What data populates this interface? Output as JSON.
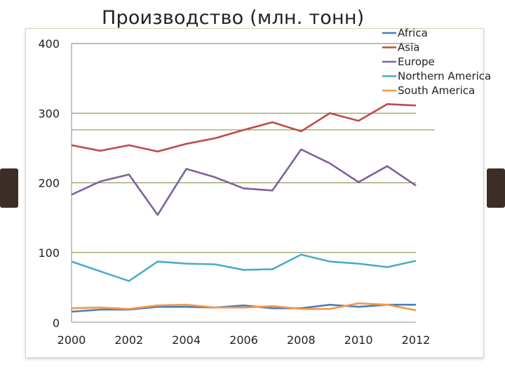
{
  "chart_data": {
    "type": "line",
    "title": "Производство (млн. тонн)",
    "x": [
      2000,
      2001,
      2002,
      2003,
      2004,
      2005,
      2006,
      2007,
      2008,
      2009,
      2010,
      2011,
      2012
    ],
    "x_ticks": [
      "2000",
      "2002",
      "2004",
      "2006",
      "2008",
      "2010",
      "2012"
    ],
    "y_ticks": [
      "0",
      "100",
      "200",
      "300",
      "400"
    ],
    "xlim": [
      2000,
      2012
    ],
    "ylim": [
      0,
      400
    ],
    "grid": "horizontal",
    "legend_position": "top-right",
    "series": [
      {
        "name": "Africa",
        "color": "#4a7ebb",
        "values": [
          15,
          18,
          18,
          22,
          22,
          21,
          24,
          20,
          20,
          25,
          22,
          25,
          25
        ]
      },
      {
        "name": "Asia",
        "color": "#be4b48",
        "values": [
          254,
          246,
          254,
          245,
          256,
          264,
          276,
          287,
          274,
          300,
          289,
          313,
          311
        ]
      },
      {
        "name": "Europe",
        "color": "#7d60a0",
        "values": [
          183,
          202,
          212,
          154,
          220,
          208,
          192,
          189,
          248,
          228,
          201,
          224,
          196
        ]
      },
      {
        "name": "Northern America",
        "color": "#4bacc6",
        "values": [
          87,
          73,
          59,
          87,
          84,
          83,
          75,
          76,
          97,
          87,
          84,
          79,
          88
        ]
      },
      {
        "name": "South America",
        "color": "#f79646",
        "values": [
          20,
          21,
          19,
          24,
          25,
          21,
          21,
          23,
          19,
          19,
          27,
          25,
          17
        ]
      }
    ]
  },
  "colors": {
    "grid": "#7a8a3a",
    "frame": "#cfd9bc",
    "side_tab": "#3a2e26"
  }
}
